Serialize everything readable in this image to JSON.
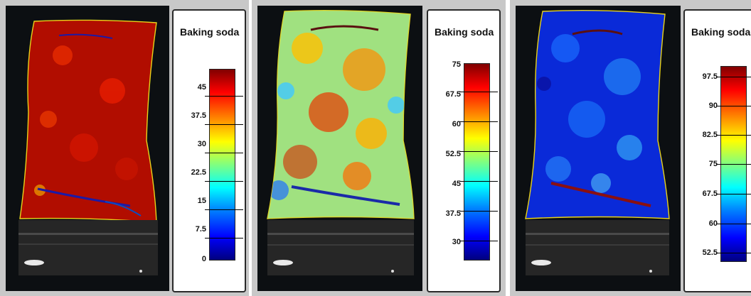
{
  "panels": [
    {
      "id": "panel-1",
      "legend_title": "Baking soda",
      "ticks": [
        "45",
        "37.5",
        "30",
        "22.5",
        "15",
        "7.5",
        "0"
      ]
    },
    {
      "id": "panel-2",
      "legend_title": "Baking soda",
      "ticks": [
        "75",
        "67.5",
        "60",
        "52.5",
        "45",
        "37.5",
        "30"
      ]
    },
    {
      "id": "panel-3",
      "legend_title": "Baking soda",
      "ticks": [
        "97.5",
        "90",
        "82.5",
        "75",
        "67.5",
        "60",
        "52.5"
      ]
    }
  ],
  "colormap": "jet",
  "colors": {
    "panel_bg": "#c8c8c8",
    "image_bg": "#0c0f12",
    "outline": "#e8d21a"
  }
}
